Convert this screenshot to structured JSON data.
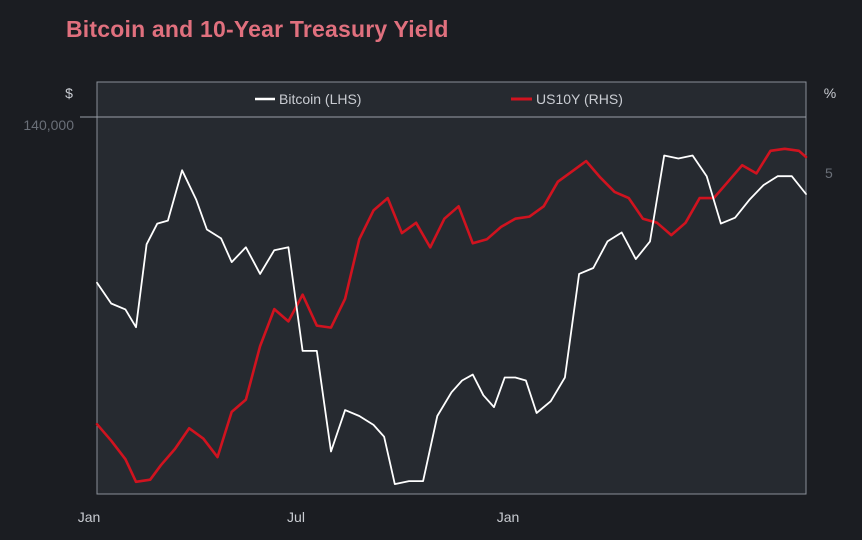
{
  "title": "Bitcoin and 10-Year Treasury Yield",
  "left_axis_unit": "$",
  "right_axis_unit": "%",
  "left_tick_label": "140,000",
  "right_tick_label": "5",
  "x_tick_labels": [
    "Jan",
    "Jul",
    "Jan"
  ],
  "legend": [
    {
      "label": "Bitcoin (LHS)",
      "color": "#ffffff"
    },
    {
      "label": "US10Y (RHS)",
      "color": "#d0131f"
    }
  ],
  "colors": {
    "title": "#e0707e",
    "background": "#1b1d22",
    "plot_background": "#262a30",
    "bitcoin": "#ffffff",
    "us10y": "#d0131f"
  },
  "chart_data": {
    "type": "line",
    "title": "Bitcoin and 10-Year Treasury Yield",
    "x_ticks": [
      "Jan",
      "Jul",
      "Jan"
    ],
    "x_range": [
      0,
      20
    ],
    "y_left": {
      "unit": "$",
      "tick_labels": [
        "140,000"
      ],
      "range": [
        15000,
        140000
      ]
    },
    "y_right": {
      "unit": "%",
      "tick_labels": [
        "5"
      ],
      "range": [
        3.4,
        5.2
      ]
    },
    "legend_position": "top",
    "grid": false,
    "series": [
      {
        "name": "Bitcoin (LHS)",
        "axis": "left",
        "color": "#ffffff",
        "x": [
          0,
          0.4,
          0.8,
          1.1,
          1.4,
          1.7,
          2.0,
          2.4,
          2.8,
          3.1,
          3.5,
          3.8,
          4.2,
          4.6,
          5.0,
          5.4,
          5.8,
          6.2,
          6.6,
          7.0,
          7.4,
          7.8,
          8.1,
          8.4,
          8.8,
          9.2,
          9.6,
          10.0,
          10.3,
          10.6,
          10.9,
          11.2,
          11.5,
          11.8,
          12.1,
          12.4,
          12.8,
          13.2,
          13.6,
          14.0,
          14.4,
          14.8,
          15.2,
          15.6,
          16.0,
          16.4,
          16.8,
          17.2,
          17.6,
          18.0,
          18.4,
          18.8,
          19.2,
          19.6,
          20.0
        ],
        "y": [
          85000,
          78000,
          76000,
          70000,
          98000,
          105000,
          106000,
          123000,
          113000,
          103000,
          100000,
          92000,
          97000,
          88000,
          96000,
          97000,
          62000,
          62000,
          28000,
          42000,
          40000,
          37000,
          33000,
          17000,
          18000,
          18000,
          40000,
          48000,
          52000,
          54000,
          47000,
          43000,
          53000,
          53000,
          52000,
          41000,
          45000,
          53000,
          88000,
          90000,
          99000,
          102000,
          93000,
          99000,
          128000,
          127000,
          128000,
          121000,
          105000,
          107000,
          113000,
          118000,
          121000,
          121000,
          115000
        ]
      },
      {
        "name": "US10Y (RHS)",
        "axis": "right",
        "color": "#d0131f",
        "x": [
          0,
          0.4,
          0.8,
          1.1,
          1.5,
          1.8,
          2.2,
          2.6,
          3.0,
          3.4,
          3.8,
          4.2,
          4.6,
          5.0,
          5.4,
          5.8,
          6.2,
          6.6,
          7.0,
          7.4,
          7.8,
          8.2,
          8.6,
          9.0,
          9.4,
          9.8,
          10.2,
          10.6,
          11.0,
          11.4,
          11.8,
          12.2,
          12.6,
          13.0,
          13.4,
          13.8,
          14.2,
          14.6,
          15.0,
          15.4,
          15.8,
          16.2,
          16.6,
          17.0,
          17.4,
          17.8,
          18.2,
          18.6,
          19.0,
          19.4,
          19.8,
          20.0
        ],
        "y": [
          3.72,
          3.64,
          3.55,
          3.44,
          3.45,
          3.52,
          3.6,
          3.7,
          3.65,
          3.56,
          3.78,
          3.84,
          4.1,
          4.28,
          4.22,
          4.35,
          4.2,
          4.19,
          4.33,
          4.62,
          4.76,
          4.82,
          4.65,
          4.7,
          4.58,
          4.72,
          4.78,
          4.6,
          4.62,
          4.68,
          4.72,
          4.73,
          4.78,
          4.9,
          4.95,
          5.0,
          4.92,
          4.85,
          4.82,
          4.72,
          4.7,
          4.64,
          4.7,
          4.82,
          4.82,
          4.9,
          4.98,
          4.94,
          5.05,
          5.06,
          5.05,
          5.02
        ]
      }
    ]
  }
}
